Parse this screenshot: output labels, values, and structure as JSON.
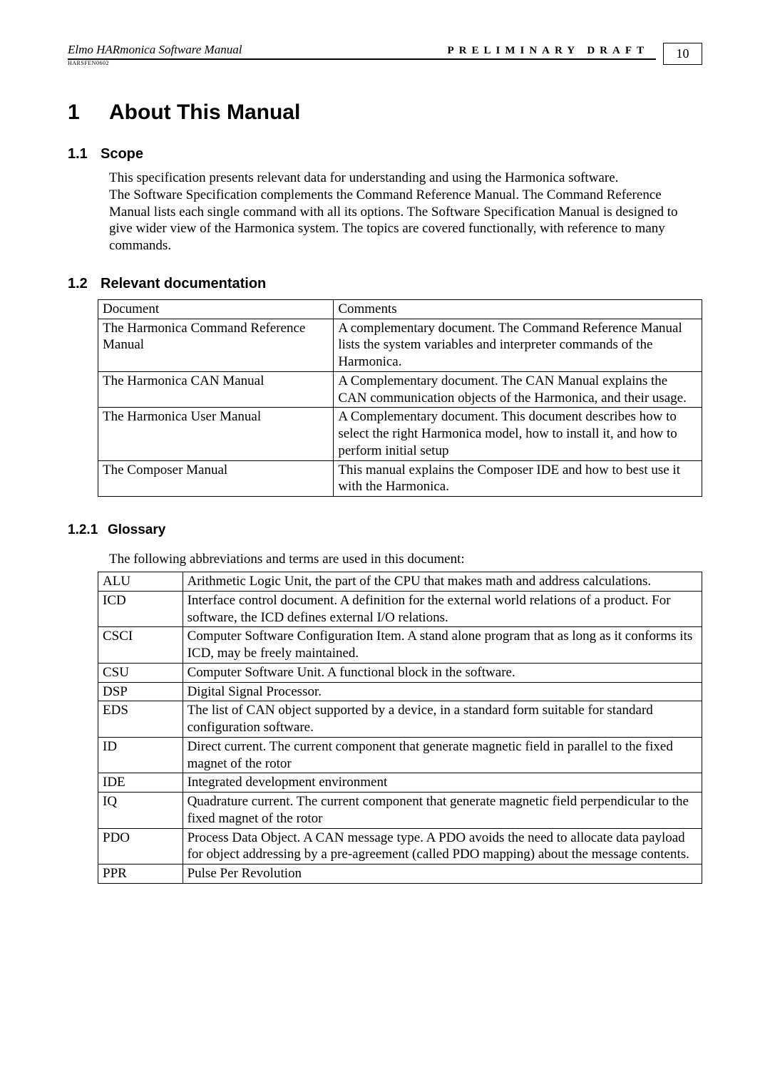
{
  "header": {
    "left_title": "Elmo HARmonica Software Manual",
    "right_label": "PRELIMINARY DRAFT",
    "sub_code": "HARSFEN0602",
    "page_number": "10"
  },
  "section": {
    "num": "1",
    "title": "About This Manual"
  },
  "scope": {
    "num": "1.1",
    "title": "Scope",
    "p1": "This specification presents relevant data for understanding and using the Harmonica software.",
    "p2": "The Software Specification complements the Command Reference Manual. The Command Reference Manual lists each single command with all its options. The Software Specification Manual is designed to give wider view of the Harmonica system. The topics are covered functionally, with reference to many commands."
  },
  "relevant": {
    "num": "1.2",
    "title": "Relevant documentation",
    "table_header_doc": "Document",
    "table_header_com": "Comments",
    "rows": [
      {
        "doc": "The Harmonica Command Reference Manual",
        "com": "A complementary document. The Command Reference Manual lists the system variables and interpreter commands of the Harmonica."
      },
      {
        "doc": "The Harmonica CAN Manual",
        "com": "A Complementary document. The CAN Manual explains the CAN communication objects of the Harmonica, and their usage."
      },
      {
        "doc": "The Harmonica User Manual",
        "com": "A Complementary document. This document describes how to select the right Harmonica model, how to install it, and how to perform initial setup"
      },
      {
        "doc": "The Composer Manual",
        "com": "This manual explains the Composer IDE and how to best use it with the Harmonica."
      }
    ]
  },
  "glossary": {
    "num": "1.2.1",
    "title": "Glossary",
    "intro": "The following abbreviations and terms are used in this document:",
    "rows": [
      {
        "t": "ALU",
        "d": "Arithmetic Logic Unit, the part of the CPU that makes math and address calculations."
      },
      {
        "t": "ICD",
        "d": "Interface control document. A definition for the external world relations of a product. For software, the ICD defines external I/O relations."
      },
      {
        "t": "CSCI",
        "d": "Computer Software Configuration Item. A stand alone program that as long as it conforms its ICD, may be freely maintained."
      },
      {
        "t": "CSU",
        "d": "Computer Software Unit. A functional block in the software."
      },
      {
        "t": "DSP",
        "d": "Digital Signal Processor."
      },
      {
        "t": "EDS",
        "d": "The list of CAN object supported by a device, in a standard form suitable for standard configuration software."
      },
      {
        "t": "ID",
        "d": "Direct current. The current component that generate magnetic field in parallel to the fixed magnet of the rotor"
      },
      {
        "t": "IDE",
        "d": "Integrated development environment"
      },
      {
        "t": "IQ",
        "d": "Quadrature current. The current component that generate magnetic field perpendicular to the fixed magnet of the rotor"
      },
      {
        "t": "PDO",
        "d": "Process Data Object. A CAN message type. A PDO avoids the need to allocate data payload for object addressing by a pre-agreement (called PDO mapping) about the message contents."
      },
      {
        "t": "PPR",
        "d": "Pulse Per Revolution"
      }
    ]
  }
}
